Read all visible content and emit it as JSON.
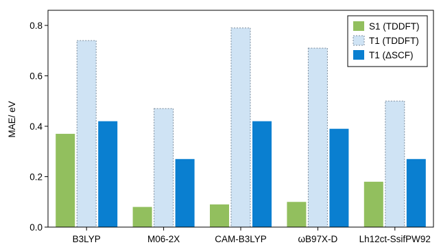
{
  "chart_data": {
    "type": "bar",
    "title": "",
    "xlabel": "",
    "ylabel": "MAE/ eV",
    "ylim": [
      0,
      0.86
    ],
    "yticks": [
      "0.0",
      "0.2",
      "0.4",
      "0.6",
      "0.8"
    ],
    "grid": false,
    "legend_position": "top-right",
    "categories": [
      "B3LYP",
      "M06-2X",
      "CAM-B3LYP",
      "ωB97X-D",
      "Lh12ct-SsifPW92"
    ],
    "series": [
      {
        "name": "S1 (TDDFT)",
        "color": "#92bf5e",
        "style": "solid",
        "values": [
          0.37,
          0.08,
          0.09,
          0.1,
          0.18
        ]
      },
      {
        "name": "T1 (TDDFT)",
        "color": "#cfe3f4",
        "style": "dashed",
        "values": [
          0.74,
          0.47,
          0.79,
          0.71,
          0.5
        ]
      },
      {
        "name": "T1 (ΔSCF)",
        "color": "#0a7fd0",
        "style": "solid",
        "values": [
          0.42,
          0.27,
          0.42,
          0.39,
          0.27
        ]
      }
    ]
  }
}
